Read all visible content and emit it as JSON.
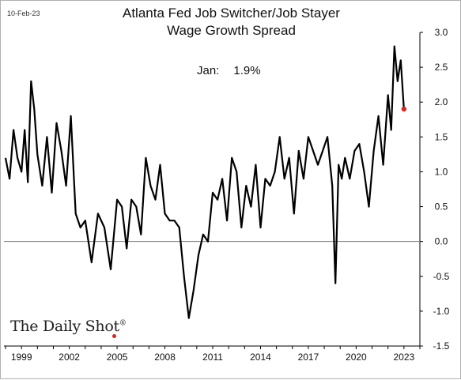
{
  "header": {
    "date": "10-Feb-23",
    "title_line1": "Atlanta Fed Job Switcher/Job Stayer",
    "title_line2": "Wage Growth Spread"
  },
  "annotation": {
    "label": "Jan:",
    "value": "1.9%"
  },
  "brand": {
    "name": "The Daily Shot",
    "mark": "®"
  },
  "chart_data": {
    "type": "line",
    "title": "Atlanta Fed Job Switcher/Job Stayer Wage Growth Spread",
    "x_ticks": [
      "1999",
      "2002",
      "2005",
      "2008",
      "2011",
      "2014",
      "2017",
      "2020",
      "2023"
    ],
    "y_ticks": [
      "3.0",
      "2.5",
      "2.0",
      "1.5",
      "1.0",
      "0.5",
      "0.0",
      "-0.5",
      "-1.0",
      "-1.5"
    ],
    "xlim": [
      1997.9,
      2024.0
    ],
    "ylim": [
      -1.5,
      3.0
    ],
    "y_axis_side": "right",
    "zero_line": true,
    "grid": false,
    "line_color": "#000000",
    "last_point_color": "#e0201c",
    "series": [
      {
        "x": [
          1998.0,
          1998.25,
          1998.5,
          1998.75,
          1999.0,
          1999.2,
          1999.4,
          1999.6,
          1999.8,
          2000.0,
          2000.3,
          2000.6,
          2000.9,
          2001.2,
          2001.5,
          2001.8,
          2002.1,
          2002.4,
          2002.7,
          2003.0,
          2003.4,
          2003.8,
          2004.2,
          2004.6,
          2005.0,
          2005.3,
          2005.6,
          2005.9,
          2006.2,
          2006.5,
          2006.8,
          2007.1,
          2007.4,
          2007.7,
          2008.0,
          2008.3,
          2008.6,
          2008.9,
          2009.2,
          2009.5,
          2009.8,
          2010.1,
          2010.4,
          2010.7,
          2011.0,
          2011.3,
          2011.6,
          2011.9,
          2012.2,
          2012.5,
          2012.8,
          2013.1,
          2013.4,
          2013.7,
          2014.0,
          2014.3,
          2014.6,
          2014.9,
          2015.2,
          2015.5,
          2015.8,
          2016.1,
          2016.4,
          2016.7,
          2017.0,
          2017.3,
          2017.6,
          2017.9,
          2018.2,
          2018.5,
          2018.7,
          2018.9,
          2019.1,
          2019.3,
          2019.6,
          2019.9,
          2020.2,
          2020.5,
          2020.8,
          2021.1,
          2021.4,
          2021.7,
          2022.0,
          2022.2,
          2022.4,
          2022.6,
          2022.8,
          2023.0
        ],
        "y": [
          1.2,
          0.9,
          1.6,
          1.2,
          1.0,
          1.6,
          0.85,
          2.3,
          1.9,
          1.25,
          0.8,
          1.5,
          0.7,
          1.7,
          1.3,
          0.8,
          1.8,
          0.4,
          0.2,
          0.3,
          -0.3,
          0.4,
          0.2,
          -0.4,
          0.6,
          0.5,
          -0.1,
          0.6,
          0.5,
          0.1,
          1.2,
          0.8,
          0.6,
          1.1,
          0.4,
          0.3,
          0.3,
          0.2,
          -0.5,
          -1.1,
          -0.7,
          -0.2,
          0.1,
          0.0,
          0.7,
          0.6,
          0.9,
          0.3,
          1.2,
          1.0,
          0.2,
          0.8,
          0.5,
          1.1,
          0.2,
          0.9,
          0.8,
          1.0,
          1.5,
          0.9,
          1.2,
          0.4,
          1.3,
          0.9,
          1.5,
          1.3,
          1.1,
          1.3,
          1.5,
          0.8,
          -0.6,
          1.1,
          0.9,
          1.2,
          0.9,
          1.3,
          1.4,
          1.0,
          0.5,
          1.3,
          1.8,
          1.1,
          2.1,
          1.6,
          2.8,
          2.3,
          2.6,
          1.9
        ]
      }
    ]
  }
}
